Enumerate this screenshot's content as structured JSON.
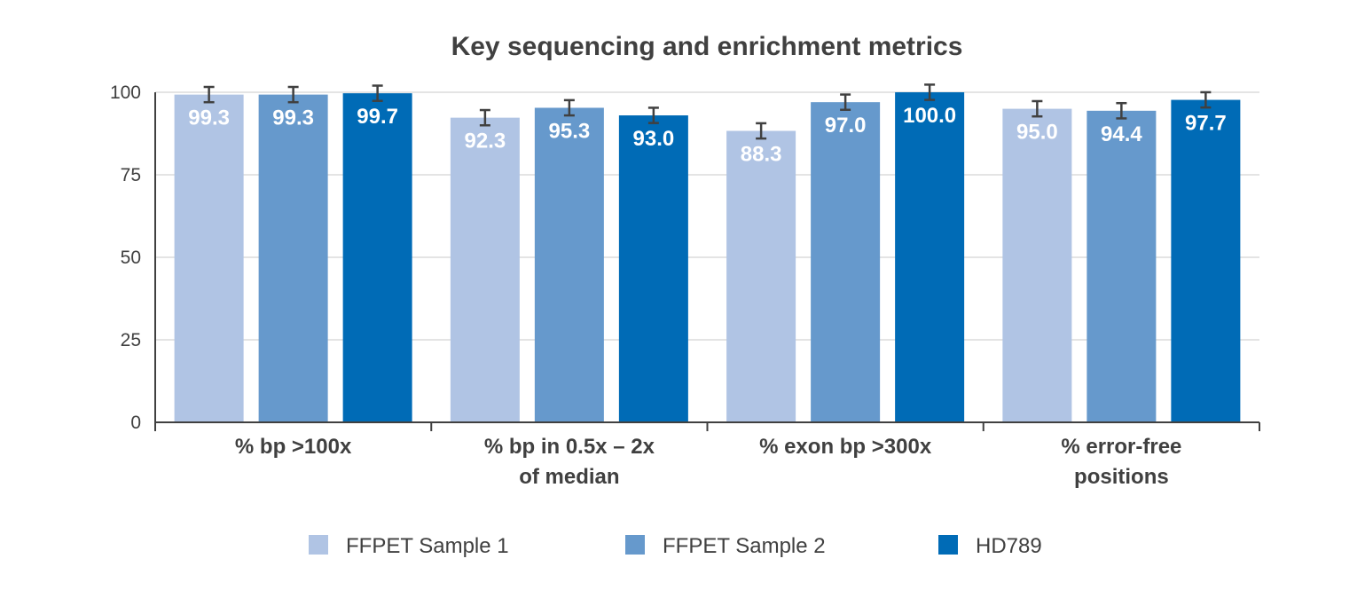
{
  "chart_data": {
    "type": "bar",
    "title": "Key sequencing and enrichment metrics",
    "xlabel": "",
    "ylabel": "",
    "ylim": [
      0,
      100
    ],
    "yticks": [
      0,
      25,
      50,
      75,
      100
    ],
    "grid": true,
    "legend_position": "bottom",
    "categories": [
      [
        "% bp >100x"
      ],
      [
        "% bp in 0.5x – 2x",
        "of median"
      ],
      [
        "% exon bp >300x"
      ],
      [
        "% error-free",
        "positions"
      ]
    ],
    "series": [
      {
        "name": "FFPET Sample 1",
        "color": "#b0c4e4",
        "values": [
          99.3,
          92.3,
          88.3,
          95.0
        ],
        "labels": [
          "99.3",
          "92.3",
          "88.3",
          "95.0"
        ],
        "errors": [
          0.7,
          0.7,
          0.7,
          0.7
        ]
      },
      {
        "name": "FFPET Sample 2",
        "color": "#6699cc",
        "values": [
          99.3,
          95.3,
          97.0,
          94.4
        ],
        "labels": [
          "99.3",
          "95.3",
          "97.0",
          "94.4"
        ],
        "errors": [
          0.7,
          0.7,
          0.7,
          0.7
        ]
      },
      {
        "name": "HD789",
        "color": "#006bb6",
        "values": [
          99.7,
          93.0,
          100.0,
          97.7
        ],
        "labels": [
          "99.7",
          "93.0",
          "100.0",
          "97.7"
        ],
        "errors": [
          0.7,
          0.7,
          0.7,
          0.7
        ]
      }
    ]
  }
}
